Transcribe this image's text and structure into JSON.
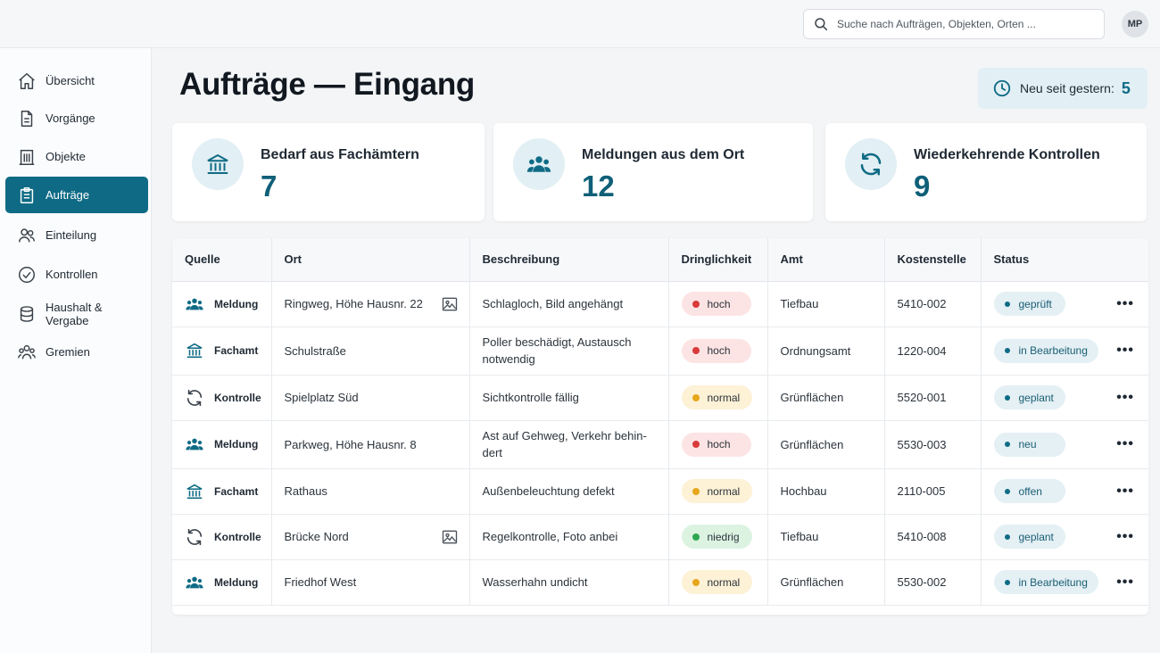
{
  "search": {
    "placeholder": "Suche nach Aufträgen, Objekten, Orten ..."
  },
  "user": {
    "initials": "MP"
  },
  "sidebar": {
    "items": [
      {
        "label": "Übersicht",
        "icon": "home-icon",
        "active": false
      },
      {
        "label": "Vorgänge",
        "icon": "document-icon",
        "active": false
      },
      {
        "label": "Objekte",
        "icon": "building-icon",
        "active": false
      },
      {
        "label": "Aufträge",
        "icon": "clipboard-icon",
        "active": true
      },
      {
        "label": "Einteilung",
        "icon": "people-icon",
        "active": false
      },
      {
        "label": "Kontrollen",
        "icon": "check-circle-icon",
        "active": false
      },
      {
        "label": "Haushalt & Vergabe",
        "icon": "database-icon",
        "active": false
      },
      {
        "label": "Gremien",
        "icon": "group-icon",
        "active": false
      }
    ]
  },
  "page": {
    "title": "Aufträge — Eingang"
  },
  "new_since": {
    "label": "Neu seit gestern:",
    "value": "5",
    "icon": "clock-icon"
  },
  "stats": [
    {
      "label": "Bedarf aus Fachämtern",
      "value": "7",
      "icon": "government-building-icon"
    },
    {
      "label": "Meldungen aus dem Ort",
      "value": "12",
      "icon": "citizens-group-icon"
    },
    {
      "label": "Wiederkehrende Kontrollen",
      "value": "9",
      "icon": "refresh-icon"
    }
  ],
  "table": {
    "headers": [
      "Quelle",
      "Ort",
      "Beschreibung",
      "Dringlichkeit",
      "Amt",
      "Kostenstelle",
      "Status"
    ],
    "rows": [
      {
        "source": "Meldung",
        "ort": "Ringweg, Höhe Hausnr. 22",
        "image": true,
        "desc": "Schlagloch, Bild angehängt",
        "urgency": "hoch",
        "amt": "Tiefbau",
        "kst": "5410-002",
        "status": "geprüft"
      },
      {
        "source": "Fachamt",
        "ort": "Schulstraße",
        "image": false,
        "desc": "Poller beschädigt, Austausch notwendig",
        "urgency": "hoch",
        "amt": "Ordnungsamt",
        "kst": "1220-004",
        "status": "in Bearbeitung"
      },
      {
        "source": "Kontrolle",
        "ort": "Spielplatz Süd",
        "image": false,
        "desc": "Sichtkontrolle fällig",
        "urgency": "normal",
        "amt": "Grünflächen",
        "kst": "5520-001",
        "status": "geplant"
      },
      {
        "source": "Meldung",
        "ort": "Parkweg, Höhe Hausnr. 8",
        "image": false,
        "desc": "Ast auf Gehweg, Verkehr behin-dert",
        "urgency": "hoch",
        "amt": "Grünflächen",
        "kst": "5530-003",
        "status": "neu"
      },
      {
        "source": "Fachamt",
        "ort": "Rathaus",
        "image": false,
        "desc": "Außenbeleuchtung defekt",
        "urgency": "normal",
        "amt": "Hochbau",
        "kst": "2110-005",
        "status": "offen"
      },
      {
        "source": "Kontrolle",
        "ort": "Brücke Nord",
        "image": true,
        "desc": "Regelkontrolle, Foto anbei",
        "urgency": "niedrig",
        "amt": "Tiefbau",
        "kst": "5410-008",
        "status": "geplant"
      },
      {
        "source": "Meldung",
        "ort": "Friedhof West",
        "image": false,
        "desc": "Wasserhahn undicht",
        "urgency": "normal",
        "amt": "Grünflächen",
        "kst": "5530-002",
        "status": "in Bearbeitung"
      }
    ],
    "more_label": "•••"
  },
  "colors": {
    "accent": "#0f6b85",
    "hoch_bg": "#fde4e4",
    "hoch_dot": "#d93a3a",
    "normal_bg": "#fdf1d6",
    "normal_dot": "#e6a61c",
    "niedrig_bg": "#dcf3e2",
    "niedrig_dot": "#2fa652"
  }
}
